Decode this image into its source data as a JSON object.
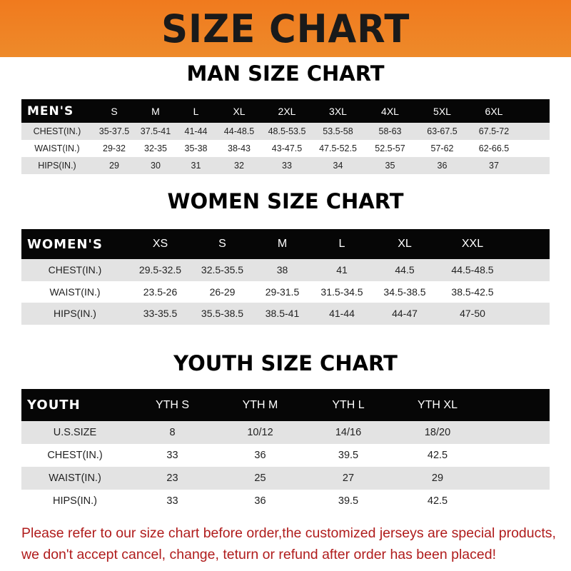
{
  "title": "SIZE CHART",
  "men": {
    "title": "MAN SIZE CHART",
    "header": [
      "MEN'S",
      "S",
      "M",
      "L",
      "XL",
      "2XL",
      "3XL",
      "4XL",
      "5XL",
      "6XL"
    ],
    "rows": [
      [
        "CHEST(IN.)",
        "35-37.5",
        "37.5-41",
        "41-44",
        "44-48.5",
        "48.5-53.5",
        "53.5-58",
        "58-63",
        "63-67.5",
        "67.5-72"
      ],
      [
        "WAIST(IN.)",
        "29-32",
        "32-35",
        "35-38",
        "38-43",
        "43-47.5",
        "47.5-52.5",
        "52.5-57",
        "57-62",
        "62-66.5"
      ],
      [
        "HIPS(IN.)",
        "29",
        "30",
        "31",
        "32",
        "33",
        "34",
        "35",
        "36",
        "37"
      ]
    ]
  },
  "women": {
    "title": "WOMEN SIZE CHART",
    "header": [
      "WOMEN'S",
      "XS",
      "S",
      "M",
      "L",
      "XL",
      "XXL"
    ],
    "rows": [
      [
        "CHEST(IN.)",
        "29.5-32.5",
        "32.5-35.5",
        "38",
        "41",
        "44.5",
        "44.5-48.5"
      ],
      [
        "WAIST(IN.)",
        "23.5-26",
        "26-29",
        "29-31.5",
        "31.5-34.5",
        "34.5-38.5",
        "38.5-42.5"
      ],
      [
        "HIPS(IN.)",
        "33-35.5",
        "35.5-38.5",
        "38.5-41",
        "41-44",
        "44-47",
        "47-50"
      ]
    ]
  },
  "youth": {
    "title": "YOUTH SIZE CHART",
    "header": [
      "YOUTH",
      "YTH S",
      "YTH M",
      "YTH L",
      "YTH XL"
    ],
    "rows": [
      [
        "U.S.SIZE",
        "8",
        "10/12",
        "14/16",
        "18/20"
      ],
      [
        "CHEST(IN.)",
        "33",
        "36",
        "39.5",
        "42.5"
      ],
      [
        "WAIST(IN.)",
        "23",
        "25",
        "27",
        "29"
      ],
      [
        "HIPS(IN.)",
        "33",
        "36",
        "39.5",
        "42.5"
      ]
    ]
  },
  "note": {
    "line1": "Please refer to our size chart before order,the customized jerseys are special products,",
    "line2": "we don't accept cancel, change, teturn or refund after order has been placed!"
  },
  "colors": {
    "banner": "#f07a1e",
    "header_bg": "#060606",
    "stripe": "#e3e3e3",
    "note": "#b01c1c"
  }
}
